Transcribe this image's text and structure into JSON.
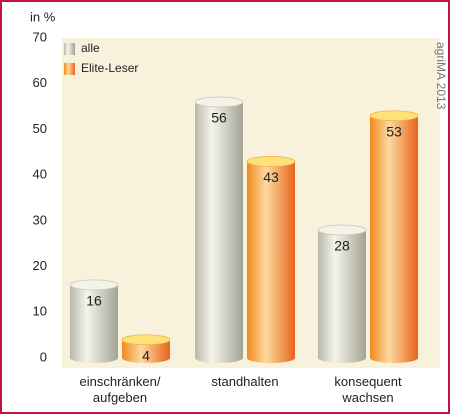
{
  "chart_data": {
    "type": "bar",
    "y_unit_label": "in %",
    "source": "agriMA 2013",
    "categories": [
      "einschränken/\naufgeben",
      "standhalten",
      "konsequent\nwachsen"
    ],
    "series": [
      {
        "name": "alle",
        "color": "#d2d2c4",
        "values": [
          16,
          56,
          28
        ]
      },
      {
        "name": "Elite-Leser",
        "color": "#f7941d",
        "values": [
          4,
          43,
          53
        ]
      }
    ],
    "ylim": [
      0,
      70
    ],
    "yticks": [
      0,
      10,
      20,
      30,
      40,
      50,
      60,
      70
    ],
    "grid": false,
    "legend": "top-left"
  }
}
